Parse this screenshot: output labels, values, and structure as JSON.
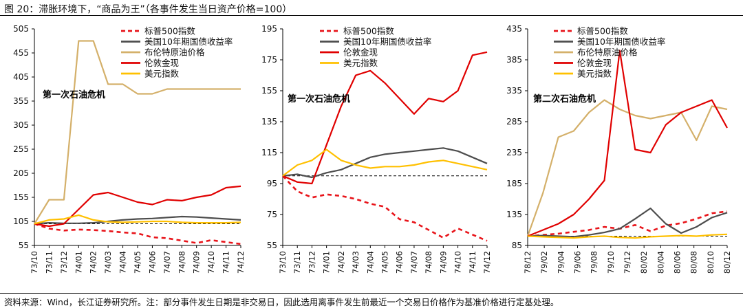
{
  "figure": {
    "title": "图 20：滞胀环境下，“商品为王”（各事件发生当日资产价格=100）",
    "source": "资料来源：Wind，长江证券研究所。注：部分事件发生日期是非交易日，因此选用离事件发生前最近一个交易日价格作为基准价格进行定基处理。"
  },
  "chart_data": [
    {
      "type": "line",
      "annotation": "第一次石油危机",
      "x_ticks": [
        "73/10",
        "73/11",
        "73/12",
        "74/01",
        "74/02",
        "74/03",
        "74/04",
        "74/05",
        "74/06",
        "74/07",
        "74/08",
        "74/09",
        "74/10",
        "74/11",
        "74/12"
      ],
      "y_ticks": [
        55,
        105,
        155,
        205,
        255,
        305,
        355,
        405,
        455,
        505
      ],
      "ylim": [
        55,
        505
      ],
      "baseline": 100,
      "legend": [
        "标普500指数",
        "美国10年期国债收益率",
        "布伦特原油价格",
        "伦敦金现",
        "美元指数"
      ],
      "series": [
        {
          "name": "标普500指数",
          "color": "#E8141A",
          "style": "dashed",
          "values": [
            100,
            90,
            86,
            88,
            87,
            85,
            82,
            80,
            72,
            70,
            65,
            60,
            66,
            62,
            58
          ]
        },
        {
          "name": "美国10年期国债收益率",
          "color": "#4D4D4D",
          "style": "solid",
          "values": [
            100,
            102,
            101,
            101,
            102,
            105,
            108,
            110,
            111,
            113,
            115,
            114,
            112,
            110,
            108
          ]
        },
        {
          "name": "布伦特原油价格",
          "color": "#D4B06A",
          "style": "solid",
          "values": [
            100,
            150,
            150,
            480,
            480,
            390,
            390,
            370,
            370,
            380,
            380,
            380,
            380,
            380,
            380
          ]
        },
        {
          "name": "伦敦金现",
          "color": "#E00000",
          "style": "solid",
          "values": [
            100,
            95,
            100,
            130,
            160,
            165,
            155,
            145,
            140,
            150,
            148,
            155,
            160,
            175,
            178
          ]
        },
        {
          "name": "美元指数",
          "color": "#FFC000",
          "style": "solid",
          "values": [
            100,
            108,
            110,
            118,
            108,
            104,
            103,
            104,
            105,
            105,
            103,
            102,
            102,
            102,
            103
          ]
        }
      ]
    },
    {
      "type": "line",
      "annotation": "第一次石油危机",
      "x_ticks": [
        "73/10",
        "73/11",
        "73/12",
        "74/01",
        "74/02",
        "74/03",
        "74/04",
        "74/05",
        "74/06",
        "74/07",
        "74/08",
        "74/09",
        "74/10",
        "74/11",
        "74/12"
      ],
      "y_ticks": [
        55,
        75,
        95,
        115,
        135,
        155,
        175,
        195
      ],
      "ylim": [
        55,
        195
      ],
      "baseline": 100,
      "legend": [
        "标普500指数",
        "美国10年期国债收益率",
        "伦敦金现",
        "美元指数"
      ],
      "series": [
        {
          "name": "标普500指数",
          "color": "#E8141A",
          "style": "dashed",
          "values": [
            100,
            90,
            86,
            88,
            87,
            85,
            82,
            80,
            72,
            70,
            65,
            60,
            66,
            62,
            58
          ]
        },
        {
          "name": "美国10年期国债收益率",
          "color": "#4D4D4D",
          "style": "solid",
          "values": [
            100,
            101,
            99,
            102,
            104,
            108,
            112,
            114,
            115,
            116,
            117,
            118,
            116,
            112,
            108
          ]
        },
        {
          "name": "伦敦金现",
          "color": "#E00000",
          "style": "solid",
          "values": [
            100,
            96,
            95,
            120,
            145,
            165,
            168,
            160,
            150,
            140,
            150,
            148,
            155,
            178,
            180
          ]
        },
        {
          "name": "美元指数",
          "color": "#FFC000",
          "style": "solid",
          "values": [
            100,
            107,
            110,
            117,
            110,
            107,
            105,
            106,
            106,
            107,
            109,
            110,
            108,
            106,
            104
          ]
        }
      ]
    },
    {
      "type": "line",
      "annotation": "第二次石油危机",
      "x_ticks": [
        "78/12",
        "79/02",
        "79/04",
        "79/06",
        "79/08",
        "79/10",
        "79/12",
        "80/02",
        "80/04",
        "80/06",
        "80/08",
        "80/10",
        "80/12"
      ],
      "y_ticks": [
        85,
        135,
        185,
        235,
        285,
        335,
        385,
        435
      ],
      "ylim": [
        85,
        435
      ],
      "baseline": 100,
      "legend": [
        "标普500指数",
        "美国10年期国债收益率",
        "布伦特原油价格",
        "伦敦金现",
        "美元指数"
      ],
      "series": [
        {
          "name": "标普500指数",
          "color": "#E8141A",
          "style": "dashed",
          "values": [
            100,
            102,
            104,
            107,
            110,
            115,
            112,
            118,
            108,
            117,
            121,
            128,
            137,
            140
          ]
        },
        {
          "name": "美国10年期国债收益率",
          "color": "#4D4D4D",
          "style": "solid",
          "values": [
            100,
            101,
            100,
            99,
            102,
            106,
            112,
            128,
            145,
            120,
            105,
            115,
            130,
            138
          ]
        },
        {
          "name": "布伦特原油价格",
          "color": "#D4B06A",
          "style": "solid",
          "values": [
            100,
            170,
            260,
            270,
            300,
            320,
            305,
            295,
            290,
            295,
            300,
            255,
            310,
            305
          ]
        },
        {
          "name": "伦敦金现",
          "color": "#E00000",
          "style": "solid",
          "values": [
            100,
            110,
            120,
            135,
            160,
            190,
            400,
            240,
            235,
            280,
            300,
            310,
            320,
            275
          ]
        },
        {
          "name": "美元指数",
          "color": "#FFC000",
          "style": "solid",
          "values": [
            100,
            99,
            98,
            97,
            99,
            100,
            98,
            97,
            99,
            100,
            101,
            100,
            102,
            103
          ]
        }
      ]
    }
  ]
}
